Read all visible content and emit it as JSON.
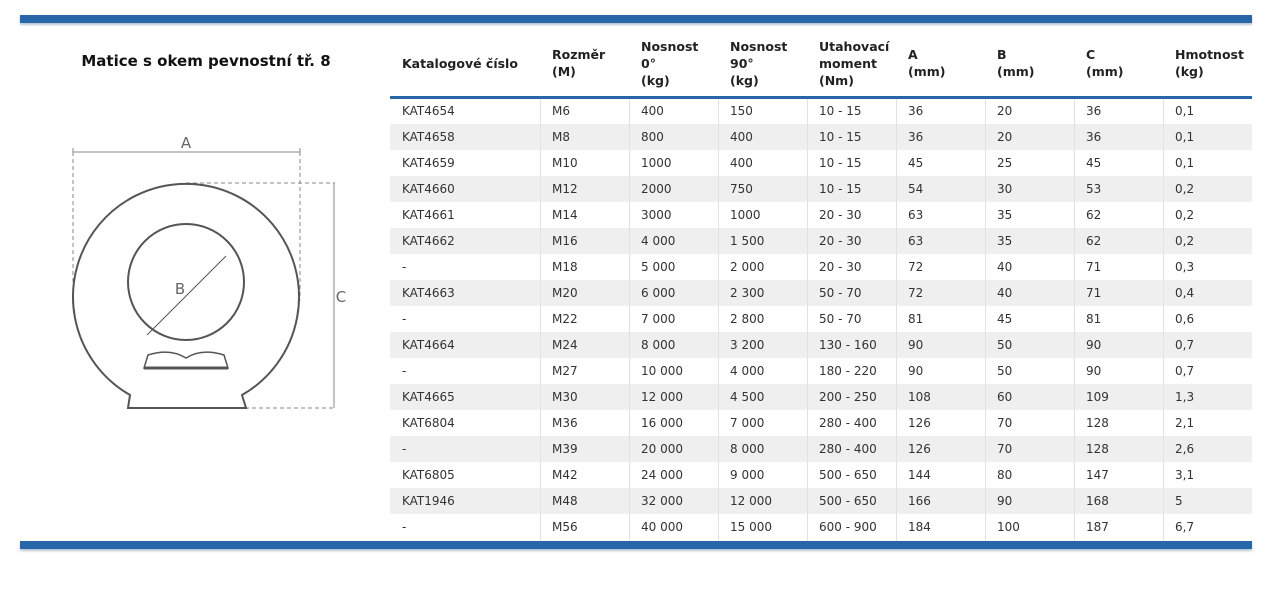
{
  "title": "Matice s okem pevnostní tř. 8",
  "diagram": {
    "labels": [
      "A",
      "B",
      "C"
    ]
  },
  "table": {
    "headers": [
      [
        "Katalogové číslo"
      ],
      [
        "Rozměr",
        "(M)"
      ],
      [
        "Nosnost",
        "0°",
        "(kg)"
      ],
      [
        "Nosnost",
        "90°",
        "(kg)"
      ],
      [
        "Utahovací",
        "moment",
        "(Nm)"
      ],
      [
        "A",
        "(mm)"
      ],
      [
        "B",
        "(mm)"
      ],
      [
        "C",
        "(mm)"
      ],
      [
        "Hmotnost",
        "(kg)"
      ]
    ],
    "rows": [
      [
        "KAT4654",
        "M6",
        "400",
        "150",
        "10 - 15",
        "36",
        "20",
        "36",
        "0,1"
      ],
      [
        "KAT4658",
        "M8",
        "800",
        "400",
        "10 - 15",
        "36",
        "20",
        "36",
        "0,1"
      ],
      [
        "KAT4659",
        "M10",
        "1000",
        "400",
        "10 - 15",
        "45",
        "25",
        "45",
        "0,1"
      ],
      [
        "KAT4660",
        "M12",
        "2000",
        "750",
        "10 - 15",
        "54",
        "30",
        "53",
        "0,2"
      ],
      [
        "KAT4661",
        "M14",
        "3000",
        "1000",
        "20 - 30",
        "63",
        "35",
        "62",
        "0,2"
      ],
      [
        "KAT4662",
        "M16",
        "4 000",
        "1 500",
        "20 - 30",
        "63",
        "35",
        "62",
        "0,2"
      ],
      [
        "-",
        "M18",
        "5 000",
        "2 000",
        "20 - 30",
        "72",
        "40",
        "71",
        "0,3"
      ],
      [
        "KAT4663",
        "M20",
        "6 000",
        "2 300",
        "50 - 70",
        "72",
        "40",
        "71",
        "0,4"
      ],
      [
        "-",
        "M22",
        "7 000",
        "2 800",
        "50 - 70",
        "81",
        "45",
        "81",
        "0,6"
      ],
      [
        "KAT4664",
        "M24",
        "8 000",
        "3 200",
        "130 - 160",
        "90",
        "50",
        "90",
        "0,7"
      ],
      [
        "-",
        "M27",
        "10 000",
        "4 000",
        "180 - 220",
        "90",
        "50",
        "90",
        "0,7"
      ],
      [
        "KAT4665",
        "M30",
        "12 000",
        "4 500",
        "200 - 250",
        "108",
        "60",
        "109",
        "1,3"
      ],
      [
        "KAT6804",
        "M36",
        "16 000",
        "7 000",
        "280 - 400",
        "126",
        "70",
        "128",
        "2,1"
      ],
      [
        "-",
        "M39",
        "20 000",
        "8 000",
        "280 - 400",
        "126",
        "70",
        "128",
        "2,6"
      ],
      [
        "KAT6805",
        "M42",
        "24 000",
        "9 000",
        "500 - 650",
        "144",
        "80",
        "147",
        "3,1"
      ],
      [
        "KAT1946",
        "M48",
        "32 000",
        "12 000",
        "500 - 650",
        "166",
        "90",
        "168",
        "5"
      ],
      [
        "-",
        "M56",
        "40 000",
        "15 000",
        "600 - 900",
        "184",
        "100",
        "187",
        "6,7"
      ]
    ]
  }
}
